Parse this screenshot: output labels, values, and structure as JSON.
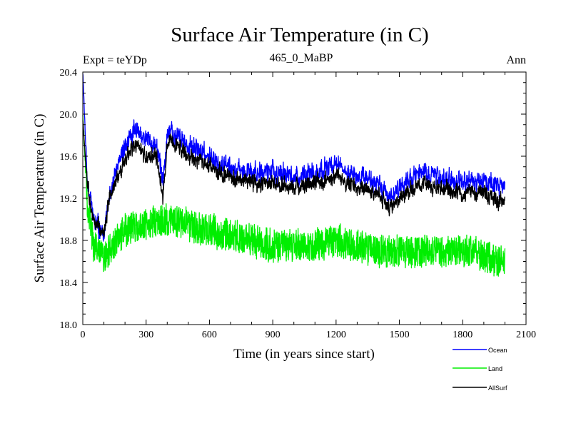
{
  "chart_data": {
    "type": "line",
    "title": "Surface Air Temperature (in C)",
    "subtitle_left": "Expt = teYDp",
    "subtitle_center": "465_0_MaBP",
    "subtitle_right": "Ann",
    "xlabel": "Time (in years since start)",
    "ylabel": "Surface Air Temperature (in C)",
    "xlim": [
      0,
      2100
    ],
    "ylim": [
      18.0,
      20.4
    ],
    "x_ticks": [
      0,
      300,
      600,
      900,
      1200,
      1500,
      1800,
      2100
    ],
    "x_tick_labels": [
      "0",
      "300",
      "600",
      "900",
      "1200",
      "1500",
      "1800",
      "2100"
    ],
    "y_ticks": [
      18.0,
      18.4,
      18.8,
      19.2,
      19.6,
      20.0,
      20.4
    ],
    "y_tick_labels": [
      "18.0",
      "18.4",
      "18.8",
      "19.2",
      "19.6",
      "20.0",
      "20.4"
    ],
    "x_minor_step": 100,
    "y_minor_step": 0.1,
    "grid": false,
    "legend_position": "bottom-right",
    "series": [
      {
        "name": "Ocean",
        "color": "#0000ff",
        "noise": 0.1,
        "anchors": [
          [
            0,
            20.4
          ],
          [
            20,
            19.4
          ],
          [
            50,
            19.0
          ],
          [
            100,
            18.85
          ],
          [
            125,
            19.2
          ],
          [
            150,
            19.4
          ],
          [
            200,
            19.7
          ],
          [
            250,
            19.85
          ],
          [
            300,
            19.75
          ],
          [
            350,
            19.7
          ],
          [
            380,
            19.35
          ],
          [
            400,
            19.8
          ],
          [
            420,
            19.85
          ],
          [
            500,
            19.7
          ],
          [
            600,
            19.6
          ],
          [
            700,
            19.5
          ],
          [
            800,
            19.45
          ],
          [
            900,
            19.45
          ],
          [
            1000,
            19.4
          ],
          [
            1100,
            19.45
          ],
          [
            1200,
            19.5
          ],
          [
            1300,
            19.4
          ],
          [
            1400,
            19.35
          ],
          [
            1450,
            19.2
          ],
          [
            1500,
            19.3
          ],
          [
            1600,
            19.45
          ],
          [
            1700,
            19.4
          ],
          [
            1800,
            19.35
          ],
          [
            1900,
            19.35
          ],
          [
            2000,
            19.3
          ]
        ]
      },
      {
        "name": "Land",
        "color": "#00ee00",
        "noise": 0.15,
        "anchors": [
          [
            0,
            20.0
          ],
          [
            20,
            19.2
          ],
          [
            50,
            18.75
          ],
          [
            100,
            18.65
          ],
          [
            200,
            18.9
          ],
          [
            300,
            18.95
          ],
          [
            400,
            19.0
          ],
          [
            500,
            18.95
          ],
          [
            600,
            18.9
          ],
          [
            700,
            18.85
          ],
          [
            800,
            18.8
          ],
          [
            900,
            18.75
          ],
          [
            1000,
            18.75
          ],
          [
            1100,
            18.75
          ],
          [
            1200,
            18.8
          ],
          [
            1300,
            18.75
          ],
          [
            1400,
            18.7
          ],
          [
            1500,
            18.7
          ],
          [
            1600,
            18.7
          ],
          [
            1700,
            18.7
          ],
          [
            1800,
            18.7
          ],
          [
            1900,
            18.65
          ],
          [
            2000,
            18.6
          ]
        ]
      },
      {
        "name": "AllSurf",
        "color": "#000000",
        "noise": 0.08,
        "anchors": [
          [
            0,
            19.95
          ],
          [
            20,
            19.35
          ],
          [
            50,
            19.0
          ],
          [
            100,
            18.85
          ],
          [
            125,
            19.2
          ],
          [
            150,
            19.35
          ],
          [
            200,
            19.55
          ],
          [
            250,
            19.72
          ],
          [
            300,
            19.6
          ],
          [
            350,
            19.6
          ],
          [
            380,
            19.2
          ],
          [
            400,
            19.7
          ],
          [
            420,
            19.75
          ],
          [
            500,
            19.6
          ],
          [
            600,
            19.5
          ],
          [
            700,
            19.4
          ],
          [
            800,
            19.35
          ],
          [
            900,
            19.35
          ],
          [
            1000,
            19.3
          ],
          [
            1100,
            19.35
          ],
          [
            1200,
            19.4
          ],
          [
            1300,
            19.3
          ],
          [
            1400,
            19.25
          ],
          [
            1450,
            19.1
          ],
          [
            1500,
            19.2
          ],
          [
            1600,
            19.35
          ],
          [
            1700,
            19.3
          ],
          [
            1800,
            19.25
          ],
          [
            1900,
            19.25
          ],
          [
            2000,
            19.15
          ]
        ]
      }
    ]
  }
}
